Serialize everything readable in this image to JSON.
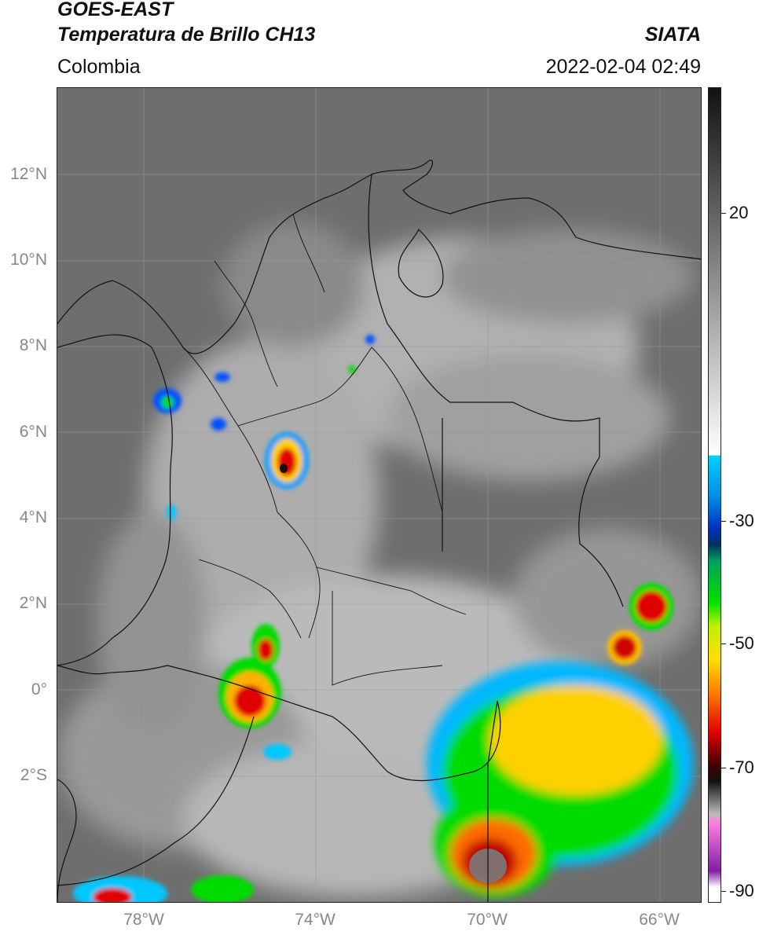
{
  "header": {
    "title_line1": "GOES-EAST",
    "title_line2": "Temperatura de Brillo CH13",
    "brand": "SIATA",
    "region": "Colombia",
    "datetime": "2022-02-04 02:49"
  },
  "latitude_labels": [
    "12°N",
    "10°N",
    "8°N",
    "6°N",
    "4°N",
    "2°N",
    "0°",
    "2°S"
  ],
  "longitude_labels": [
    "78°W",
    "74°W",
    "70°W",
    "66°W"
  ],
  "colorbar": {
    "ticks": [
      "20",
      "-30",
      "-50",
      "-70",
      "-90"
    ],
    "colors": {
      "warm": "#ffffff",
      "cold_gray": "#222222",
      "cyan": "#00c8ff",
      "blue": "#003cff",
      "green": "#00dc00",
      "yellow": "#ffe000",
      "red": "#e00000",
      "magenta": "#d040c0"
    }
  }
}
